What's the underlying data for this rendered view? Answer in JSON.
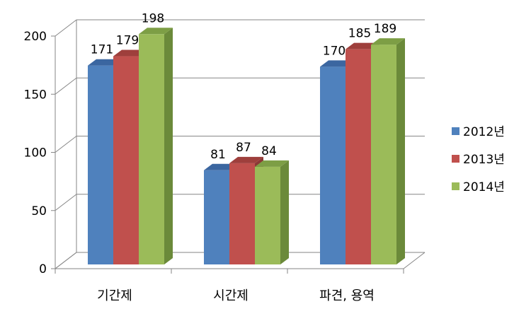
{
  "chart_data": {
    "type": "bar",
    "title": "",
    "xlabel": "",
    "ylabel": "",
    "categories": [
      "기간제",
      "시간제",
      "파견, 용역"
    ],
    "series": [
      {
        "name": "2012년",
        "values": [
          171,
          81,
          170
        ],
        "color": "#4F81BD",
        "side_color": "#385D8A",
        "top_color": "#3B66A0"
      },
      {
        "name": "2013년",
        "values": [
          179,
          87,
          185
        ],
        "color": "#C0504D",
        "side_color": "#8C3836",
        "top_color": "#9E3F3C"
      },
      {
        "name": "2014년",
        "values": [
          198,
          84,
          189
        ],
        "color": "#9BBB59",
        "side_color": "#6B8A3A",
        "top_color": "#7D9E45"
      }
    ],
    "ylim": [
      0,
      200
    ],
    "yticks": [
      0,
      50,
      100,
      150,
      200
    ],
    "grid": true,
    "legend_position": "right",
    "data_labels": true,
    "style": "3d-clustered-column"
  }
}
